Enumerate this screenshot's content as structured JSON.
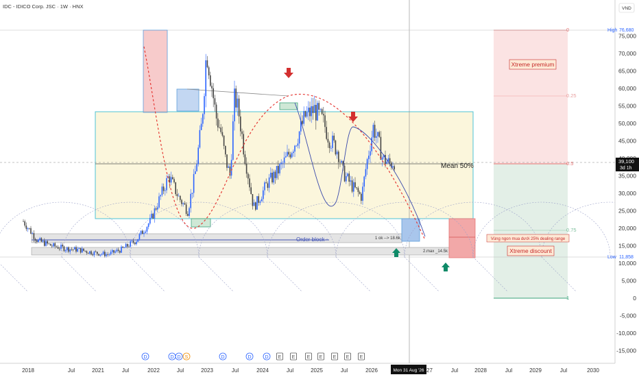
{
  "header": {
    "title": "IDC - IDICO Corp. JSC · 1W · HNX"
  },
  "price_axis": {
    "currency": "VND",
    "ticks": [
      "75,000",
      "70,000",
      "65,000",
      "60,000",
      "55,000",
      "50,000",
      "45,000",
      "40,000",
      "35,000",
      "30,000",
      "25,000",
      "20,000",
      "15,000",
      "10,000",
      "5,000",
      "0",
      "-5,000",
      "-10,000",
      "-15,000"
    ],
    "high_label": "High",
    "high_value": "76,680",
    "low_label": "Low",
    "low_value": "11,858",
    "last_price": "39,100",
    "countdown": "3d 1h"
  },
  "time_axis": {
    "labels": [
      "2018",
      "Jul",
      "2021",
      "Jul",
      "2022",
      "Jul",
      "2023",
      "Jul",
      "2024",
      "Jul",
      "2025",
      "Jul",
      "2026",
      "2027",
      "Jul",
      "2028",
      "Jul",
      "2029",
      "Jul",
      "2030"
    ],
    "crosshair_label": "Mon 31 Aug '26"
  },
  "annotations": {
    "mean": "Mean 50%",
    "order_block": "Order block ◦",
    "ok_label": "1 ok --> 18.6k",
    "max_label": "2.max _14.5k",
    "premium": "Xtreme premium",
    "discount": "Xtreme discount",
    "dealing_range": "Vùng ngon mua dưới 25% dealing range"
  },
  "fib_levels": [
    {
      "label": "0",
      "value": 76680
    },
    {
      "label": "0.25",
      "value": 57250
    },
    {
      "label": "0.5",
      "value": 39100
    },
    {
      "label": "0.75",
      "value": 19900
    },
    {
      "label": "1",
      "value": 0
    }
  ],
  "events": [
    "D",
    "D",
    "D",
    "S",
    "D",
    "D",
    "D",
    "E",
    "E",
    "E",
    "E",
    "E",
    "E",
    "E",
    "E"
  ],
  "colors": {
    "up": "#2962ff",
    "down": "#444444",
    "premium_zone": "#f7c5c5",
    "discount_zone": "#d5e8dc",
    "range_box": "#fbf6dc",
    "range_border": "#4dc3d6",
    "order_block": "#d8d8d8",
    "red_arrow": "#d32f2f",
    "green_arrow": "#0f8a68"
  },
  "chart_data": {
    "type": "candlestick",
    "title": "IDC - IDICO Corp. JSC · 1W · HNX",
    "ylim": [
      -15000,
      78000
    ],
    "xlim": [
      2017.8,
      2030.4
    ],
    "x": [
      2018.0,
      2018.3,
      2018.6,
      2018.9,
      2019.2,
      2019.5,
      2019.8,
      2020.1,
      2020.4,
      2020.7,
      2020.9,
      2021.1,
      2021.3,
      2021.5,
      2021.65,
      2021.8,
      2021.9,
      2022.0,
      2022.1,
      2022.2,
      2022.3,
      2022.4,
      2022.5,
      2022.6,
      2022.7,
      2022.8,
      2022.9,
      2023.0,
      2023.2,
      2023.4,
      2023.6,
      2023.8,
      2024.0,
      2024.2,
      2024.4,
      2024.5,
      2024.6,
      2024.7,
      2024.8,
      2025.0,
      2025.2,
      2025.3,
      2025.45,
      2025.55,
      2025.65,
      2025.8,
      2025.9
    ],
    "close": [
      22000,
      16500,
      15000,
      14200,
      13800,
      13000,
      12500,
      14000,
      16500,
      22000,
      28500,
      35000,
      29000,
      25000,
      35000,
      50000,
      71000,
      62000,
      52000,
      48000,
      40000,
      35000,
      58000,
      52000,
      42000,
      34000,
      26000,
      28000,
      33000,
      36000,
      40000,
      45000,
      52000,
      54000,
      50000,
      46000,
      44000,
      42000,
      36000,
      32000,
      29000,
      38000,
      49000,
      45000,
      40000,
      38500,
      39100
    ]
  }
}
